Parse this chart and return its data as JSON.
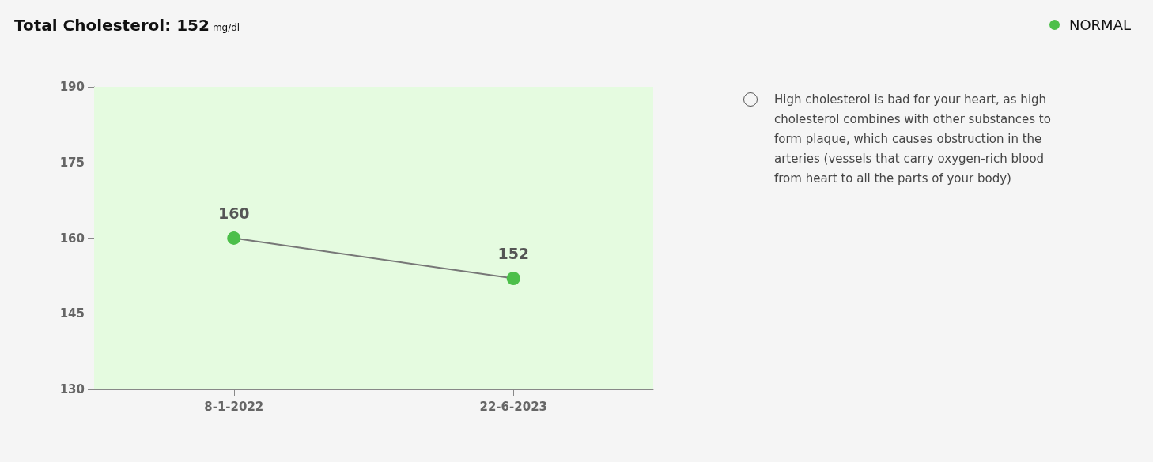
{
  "chart_data": {
    "type": "line",
    "title": "Total Cholesterol: 152",
    "subtitle": "mg/dl",
    "categories": [
      "8-1-2022",
      "22-6-2023"
    ],
    "series": [
      {
        "color": "#4cbf4a",
        "values": [
          160,
          152
        ]
      }
    ],
    "ylim": [
      130,
      190
    ],
    "yticks": [
      130,
      145,
      160,
      175,
      190
    ],
    "grid": false,
    "marker": "circle",
    "line_style": "solid",
    "data_labels": true,
    "bands": [
      {
        "axis": "y",
        "from": 130,
        "to": 190,
        "color": "#e5fbe0"
      }
    ],
    "annotations": [
      "NORMAL",
      "High cholesterol is bad for your heart, as high cholesterol combines with other substances to form plaque, which causes obstruction in the arteries (vessels that carry oxygen-rich blood from heart to all the parts of your body)"
    ]
  }
}
